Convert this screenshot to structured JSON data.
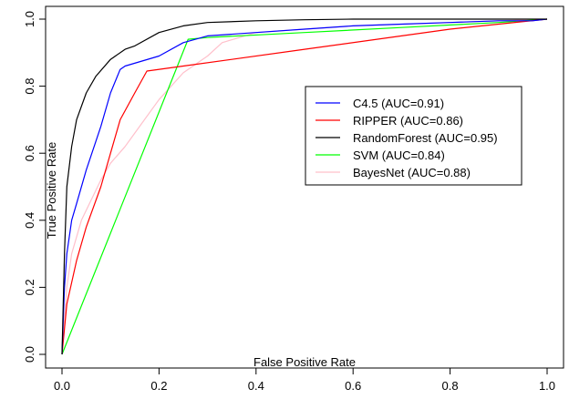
{
  "chart_data": {
    "type": "line",
    "xlabel": "False Positive Rate",
    "ylabel": "True Positive Rate",
    "xlim": [
      0,
      1
    ],
    "ylim": [
      0,
      1
    ],
    "xticks": [
      "0.0",
      "0.2",
      "0.4",
      "0.6",
      "0.8",
      "1.0"
    ],
    "yticks": [
      "0.0",
      "0.2",
      "0.4",
      "0.6",
      "0.8",
      "1.0"
    ],
    "grid": false,
    "legend_position": "right",
    "series": [
      {
        "name": "C4.5 (AUC=0.91)",
        "color": "#0000ff",
        "x": [
          0,
          0.005,
          0.01,
          0.02,
          0.03,
          0.05,
          0.08,
          0.1,
          0.12,
          0.13,
          0.2,
          0.25,
          0.3,
          0.4,
          0.5,
          0.6,
          0.7,
          0.8,
          0.9,
          0.97,
          1.0
        ],
        "y": [
          0,
          0.2,
          0.3,
          0.4,
          0.45,
          0.55,
          0.68,
          0.78,
          0.85,
          0.86,
          0.89,
          0.93,
          0.95,
          0.96,
          0.97,
          0.98,
          0.985,
          0.99,
          0.995,
          0.995,
          1.0
        ]
      },
      {
        "name": "RIPPER (AUC=0.86)",
        "color": "#ff0000",
        "x": [
          0,
          0.01,
          0.03,
          0.05,
          0.08,
          0.1,
          0.12,
          0.15,
          0.175,
          0.25,
          0.35,
          0.5,
          0.7,
          0.8,
          0.9,
          1.0
        ],
        "y": [
          0,
          0.15,
          0.28,
          0.38,
          0.5,
          0.6,
          0.7,
          0.78,
          0.845,
          0.86,
          0.88,
          0.91,
          0.95,
          0.97,
          0.985,
          1.0
        ]
      },
      {
        "name": "RandomForest (AUC=0.95)",
        "color": "#000000",
        "x": [
          0,
          0.005,
          0.01,
          0.02,
          0.03,
          0.05,
          0.07,
          0.1,
          0.13,
          0.15,
          0.2,
          0.25,
          0.3,
          0.4,
          0.5,
          0.6,
          0.8,
          1.0
        ],
        "y": [
          0,
          0.3,
          0.5,
          0.62,
          0.7,
          0.78,
          0.83,
          0.88,
          0.91,
          0.92,
          0.96,
          0.98,
          0.99,
          0.995,
          0.998,
          1.0,
          1.0,
          1.0
        ]
      },
      {
        "name": "SVM (AUC=0.84)",
        "color": "#00ff00",
        "x": [
          0,
          0.26,
          0.3,
          0.5,
          0.7,
          0.9,
          1.0
        ],
        "y": [
          0,
          0.94,
          0.945,
          0.96,
          0.975,
          0.99,
          1.0
        ]
      },
      {
        "name": "BayesNet (AUC=0.88)",
        "color": "#ffc0cb",
        "x": [
          0,
          0.01,
          0.02,
          0.04,
          0.06,
          0.08,
          0.1,
          0.13,
          0.15,
          0.2,
          0.25,
          0.3,
          0.33,
          0.4,
          0.5,
          0.6,
          0.8,
          1.0
        ],
        "y": [
          0,
          0.2,
          0.3,
          0.4,
          0.46,
          0.52,
          0.57,
          0.62,
          0.66,
          0.76,
          0.84,
          0.89,
          0.93,
          0.96,
          0.97,
          0.98,
          0.99,
          1.0
        ]
      }
    ]
  }
}
